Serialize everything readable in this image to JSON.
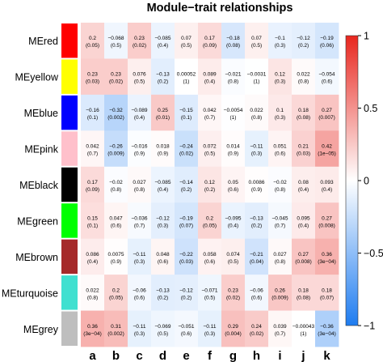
{
  "chart_data": {
    "type": "heatmap",
    "title": "Module−trait relationships",
    "rows": [
      {
        "label": "MEred",
        "color": "#FF0000"
      },
      {
        "label": "MEyellow",
        "color": "#FFFF00"
      },
      {
        "label": "MEblue",
        "color": "#0000FF"
      },
      {
        "label": "MEpink",
        "color": "#FFC0CB"
      },
      {
        "label": "MEblack",
        "color": "#000000"
      },
      {
        "label": "MEgreen",
        "color": "#00FF00"
      },
      {
        "label": "MEbrown",
        "color": "#A52A2A"
      },
      {
        "label": "MEturquoise",
        "color": "#40E0D0"
      },
      {
        "label": "MEgrey",
        "color": "#BEBEBE"
      }
    ],
    "columns": [
      "a",
      "b",
      "c",
      "d",
      "e",
      "f",
      "g",
      "h",
      "i",
      "j",
      "k"
    ],
    "values": [
      [
        0.2,
        -0.068,
        0.23,
        -0.085,
        0.07,
        0.17,
        -0.18,
        0.07,
        -0.1,
        -0.12,
        -0.19
      ],
      [
        0.23,
        0.23,
        0.076,
        -0.13,
        0.00052,
        0.089,
        -0.021,
        -0.0031,
        0.12,
        0.022,
        -0.054
      ],
      [
        -0.16,
        -0.32,
        -0.089,
        0.25,
        -0.15,
        0.042,
        -0.0054,
        0.022,
        0.1,
        0.18,
        0.27
      ],
      [
        0.042,
        -0.26,
        -0.016,
        0.018,
        -0.24,
        0.072,
        0.014,
        -0.11,
        0.051,
        0.21,
        0.42
      ],
      [
        0.17,
        -0.02,
        0.027,
        -0.085,
        -0.14,
        0.12,
        0.05,
        0.0086,
        -0.02,
        0.08,
        0.093
      ],
      [
        0.15,
        0.047,
        -0.036,
        -0.12,
        -0.19,
        0.2,
        -0.095,
        -0.13,
        -0.045,
        0.095,
        0.27
      ],
      [
        0.086,
        0.0075,
        -0.11,
        0.048,
        -0.22,
        0.058,
        0.074,
        -0.21,
        0.027,
        0.27,
        0.36
      ],
      [
        0.022,
        0.2,
        -0.06,
        -0.13,
        -0.12,
        -0.071,
        0.23,
        -0.06,
        0.26,
        0.18,
        0.18
      ],
      [
        0.36,
        0.31,
        -0.11,
        -0.069,
        -0.051,
        -0.11,
        0.29,
        0.24,
        0.039,
        -0.00043,
        -0.36
      ]
    ],
    "pvalues": [
      [
        "(0.05)",
        "(0.5)",
        "(0.02)",
        "(0.4)",
        "(0.5)",
        "(0.09)",
        "(0.08)",
        "(0.5)",
        "(0.3)",
        "(0.2)",
        "(0.06)"
      ],
      [
        "(0.03)",
        "(0.02)",
        "(0.5)",
        "(0.2)",
        "(1)",
        "(0.4)",
        "(0.8)",
        "(1)",
        "(0.3)",
        "(0.8)",
        "(0.6)"
      ],
      [
        "(0.1)",
        "(0.002)",
        "(0.4)",
        "(0.01)",
        "(0.1)",
        "(0.7)",
        "(1)",
        "(0.8)",
        "(0.3)",
        "(0.08)",
        "(0.007)"
      ],
      [
        "(0.7)",
        "(0.009)",
        "(0.9)",
        "(0.9)",
        "(0.02)",
        "(0.5)",
        "(0.9)",
        "(0.3)",
        "(0.6)",
        "(0.03)",
        "(1e−05)"
      ],
      [
        "(0.09)",
        "(0.8)",
        "(0.8)",
        "(0.4)",
        "(0.2)",
        "(0.2)",
        "(0.6)",
        "(0.9)",
        "(0.8)",
        "(0.4)",
        "(0.4)"
      ],
      [
        "(0.1)",
        "(0.6)",
        "(0.7)",
        "(0.3)",
        "(0.07)",
        "(0.05)",
        "(0.4)",
        "(0.2)",
        "(0.7)",
        "(0.4)",
        "(0.008)"
      ],
      [
        "(0.4)",
        "(0.9)",
        "(0.3)",
        "(0.6)",
        "(0.03)",
        "(0.6)",
        "(0.5)",
        "(0.04)",
        "(0.8)",
        "(0.008)",
        "(3e−04)"
      ],
      [
        "(0.8)",
        "(0.05)",
        "(0.6)",
        "(0.2)",
        "(0.2)",
        "(0.5)",
        "(0.02)",
        "(0.6)",
        "(0.009)",
        "(0.08)",
        "(0.07)"
      ],
      [
        "(3e−04)",
        "(0.002)",
        "(0.3)",
        "(0.5)",
        "(0.6)",
        "(0.3)",
        "(0.004)",
        "(0.02)",
        "(0.7)",
        "(1)",
        "(3e−04)"
      ]
    ],
    "colorscale": {
      "min": -1,
      "max": 1,
      "low": "#1E7CF0",
      "mid": "#FFFFFF",
      "high": "#E8261E"
    },
    "colorbar_ticks": [
      {
        "value": 1,
        "label": "1"
      },
      {
        "value": 0.5,
        "label": "0.5"
      },
      {
        "value": 0,
        "label": "0"
      },
      {
        "value": -0.5,
        "label": "−0.5"
      },
      {
        "value": -1,
        "label": "−1"
      }
    ],
    "legend": "right"
  }
}
